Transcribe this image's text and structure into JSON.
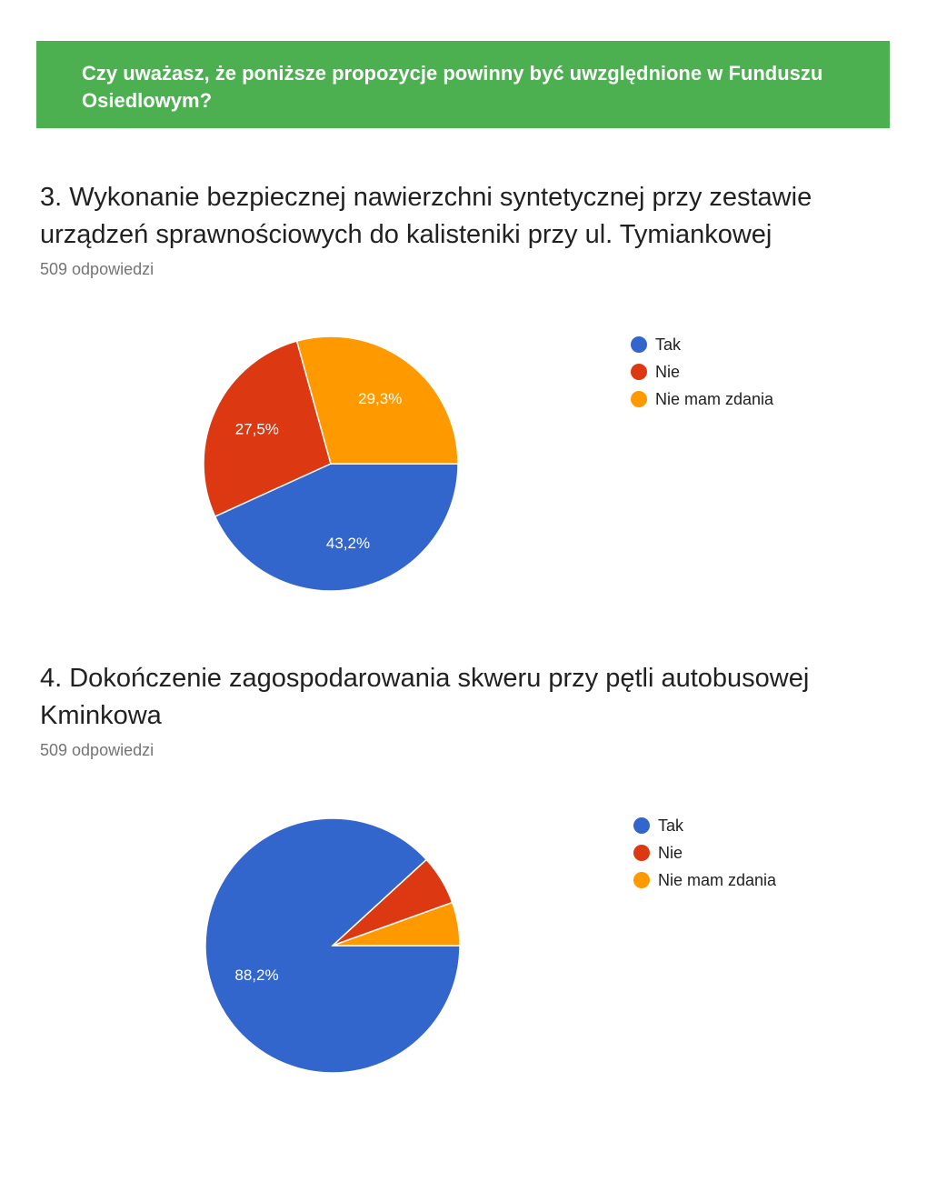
{
  "header": {
    "text": "Czy uważasz, że poniższe propozycje powinny być uwzględnione w Funduszu Osiedlowym?"
  },
  "colors": {
    "tak": "#3366cc",
    "nie": "#dc3912",
    "nie_mam_zdania": "#ff9900"
  },
  "chart_data": [
    {
      "type": "pie",
      "title": "3. Wykonanie bezpiecznej nawierzchni syntetycznej przy zestawie urządzeń sprawnościowych do kalisteniki przy ul. Tymiankowej",
      "subtitle": "509 odpowiedzi",
      "legend_position": "right",
      "slices": [
        {
          "name": "Tak",
          "value": 43.2,
          "label": "43,2%",
          "color": "#3366cc"
        },
        {
          "name": "Nie",
          "value": 27.5,
          "label": "27,5%",
          "color": "#dc3912"
        },
        {
          "name": "Nie mam zdania",
          "value": 29.3,
          "label": "29,3%",
          "color": "#ff9900"
        }
      ]
    },
    {
      "type": "pie",
      "title": "4. Dokończenie zagospodarowania skweru przy pętli autobusowej Kminkowa",
      "subtitle": "509 odpowiedzi",
      "legend_position": "right",
      "slices": [
        {
          "name": "Tak",
          "value": 88.2,
          "label": "88,2%",
          "color": "#3366cc"
        },
        {
          "name": "Nie",
          "value": 6.3,
          "label": "",
          "color": "#dc3912"
        },
        {
          "name": "Nie mam zdania",
          "value": 5.5,
          "label": "",
          "color": "#ff9900"
        }
      ]
    }
  ]
}
